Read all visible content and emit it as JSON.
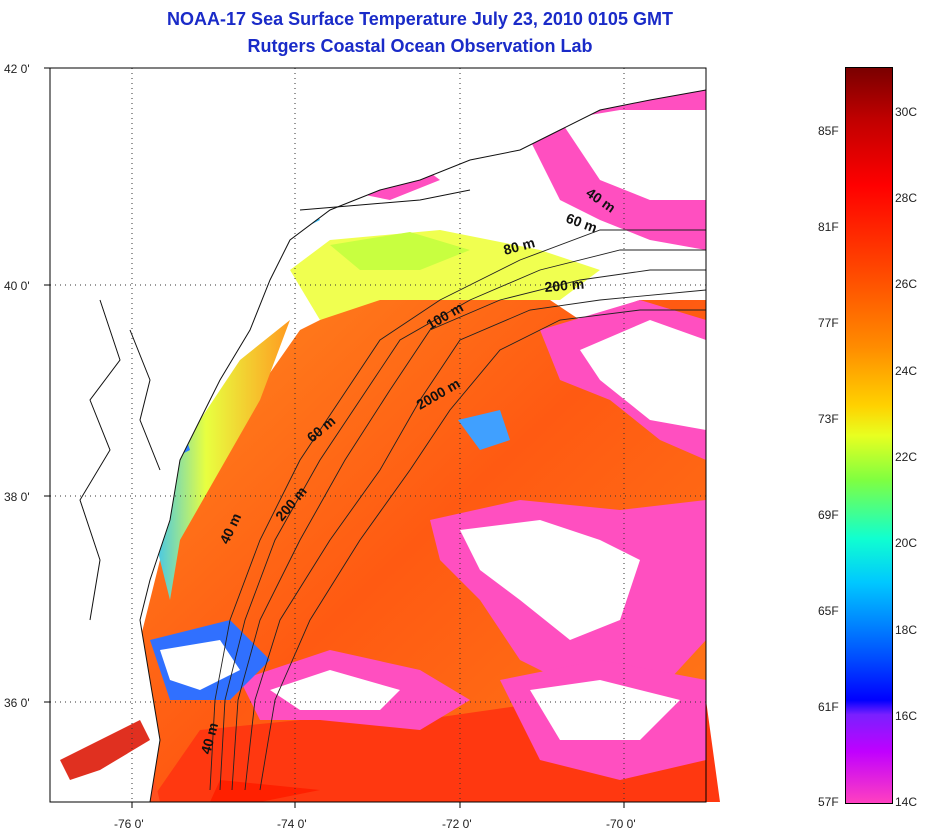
{
  "header": {
    "title": "NOAA-17 Sea Surface Temperature July 23, 2010 0105 GMT",
    "subtitle": "Rutgers Coastal Ocean Observation Lab"
  },
  "axes": {
    "y_ticks": [
      "42 0'",
      "40 0'",
      "38 0'",
      "36 0'"
    ],
    "x_ticks": [
      "-76 0'",
      "-74 0'",
      "-72 0'",
      "-70 0'"
    ]
  },
  "isobaths": [
    "40 m",
    "60 m",
    "80 m",
    "200 m",
    "100 m",
    "2000 m",
    "60 m",
    "200 m",
    "40 m",
    "40 m"
  ],
  "colorbar": {
    "fahrenheit": [
      "85F",
      "81F",
      "77F",
      "73F",
      "69F",
      "65F",
      "61F",
      "57F"
    ],
    "celsius": [
      "30C",
      "28C",
      "26C",
      "24C",
      "22C",
      "20C",
      "18C",
      "16C",
      "14C"
    ]
  },
  "colors": {
    "title": "#1a2bc8",
    "land": "#ffffff",
    "warm_water": "#ff6a10",
    "cloud": "#ffffff"
  }
}
